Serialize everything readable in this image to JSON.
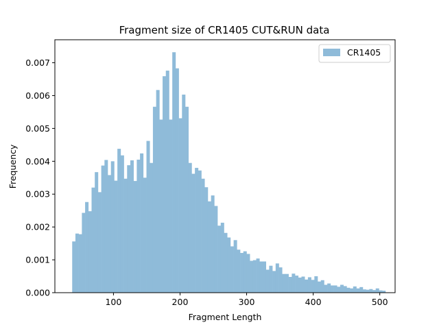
{
  "chart_data": {
    "type": "bar",
    "title": "Fragment size of CR1405 CUT&RUN data",
    "xlabel": "Fragment Length",
    "ylabel": "Frequency",
    "xlim": [
      12,
      523
    ],
    "ylim": [
      0,
      0.0077
    ],
    "x_ticks": [
      100,
      200,
      300,
      400,
      500
    ],
    "x_tick_labels": [
      "100",
      "200",
      "300",
      "400",
      "500"
    ],
    "y_ticks": [
      0,
      0.001,
      0.002,
      0.003,
      0.004,
      0.005,
      0.006,
      0.007
    ],
    "y_tick_labels": [
      "0.000",
      "0.001",
      "0.002",
      "0.003",
      "0.004",
      "0.005",
      "0.006",
      "0.007"
    ],
    "legend_position": "top-right",
    "bin_start": 38,
    "bin_width": 4.85,
    "series": [
      {
        "name": "CR1405",
        "color": "#8fbbd9",
        "values": [
          0.00156,
          0.0018,
          0.00178,
          0.00243,
          0.00276,
          0.00248,
          0.0032,
          0.00367,
          0.00306,
          0.00387,
          0.00404,
          0.00358,
          0.004,
          0.00341,
          0.00438,
          0.00418,
          0.00347,
          0.00388,
          0.00403,
          0.0034,
          0.00405,
          0.00424,
          0.0035,
          0.00462,
          0.00395,
          0.00566,
          0.00617,
          0.00527,
          0.00659,
          0.00676,
          0.00527,
          0.00732,
          0.00683,
          0.00531,
          0.00603,
          0.00566,
          0.00395,
          0.00362,
          0.0038,
          0.00372,
          0.00347,
          0.00321,
          0.00278,
          0.00296,
          0.00264,
          0.00204,
          0.00213,
          0.00182,
          0.00168,
          0.00141,
          0.0016,
          0.00131,
          0.00121,
          0.00126,
          0.00118,
          0.00097,
          0.00099,
          0.00104,
          0.00095,
          0.00095,
          0.0007,
          0.00082,
          0.00066,
          0.00089,
          0.00077,
          0.00057,
          0.00057,
          0.00048,
          0.00058,
          0.00052,
          0.00046,
          0.00049,
          0.0004,
          0.00047,
          0.00039,
          0.0005,
          0.00034,
          0.00038,
          0.00024,
          0.00028,
          0.00022,
          0.00022,
          0.00018,
          0.00024,
          0.0002,
          0.00015,
          0.00013,
          0.00019,
          0.00013,
          0.00017,
          0.0001,
          9e-05,
          0.00011,
          8e-05,
          0.00013,
          7e-05,
          6e-05
        ]
      }
    ]
  }
}
